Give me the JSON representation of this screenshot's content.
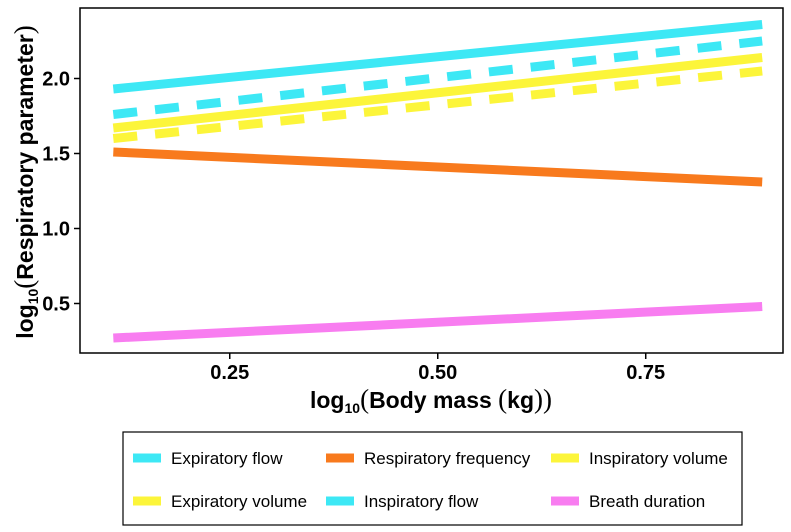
{
  "chart_data": {
    "type": "line",
    "xlabel": {
      "prefix": "log",
      "sub": "10",
      "open": "(",
      "text": "Body mass ",
      "unit_open": "(",
      "unit": "kg",
      "unit_close": ")",
      "close": ")"
    },
    "ylabel": {
      "prefix": "log",
      "sub": "10",
      "open": "(",
      "text": "Respiratory parameter",
      "close": ")"
    },
    "xlim": [
      0.07,
      0.915
    ],
    "ylim": [
      0.17,
      2.47
    ],
    "xticks": [
      0.25,
      0.5,
      0.75
    ],
    "xtick_labels": [
      "0.25",
      "0.50",
      "0.75"
    ],
    "yticks": [
      0.5,
      1.0,
      1.5,
      2.0
    ],
    "ytick_labels": [
      "0.5",
      "1.0",
      "1.5",
      "2.0"
    ],
    "grid": false,
    "legend_position": "bottom",
    "series": [
      {
        "name": "Expiratory flow",
        "color": "#3de8f5",
        "dash": "solid",
        "x": [
          0.11,
          0.89
        ],
        "y": [
          1.93,
          2.36
        ]
      },
      {
        "name": "Inspiratory flow",
        "color": "#3de8f5",
        "dash": "dashed",
        "x": [
          0.11,
          0.89
        ],
        "y": [
          1.76,
          2.25
        ]
      },
      {
        "name": "Inspiratory volume",
        "color": "#fcf53a",
        "dash": "solid",
        "x": [
          0.11,
          0.89
        ],
        "y": [
          1.67,
          2.14
        ]
      },
      {
        "name": "Expiratory volume",
        "color": "#fcf53a",
        "dash": "dashed",
        "x": [
          0.11,
          0.89
        ],
        "y": [
          1.6,
          2.05
        ]
      },
      {
        "name": "Respiratory frequency",
        "color": "#f87a1d",
        "dash": "solid",
        "x": [
          0.11,
          0.89
        ],
        "y": [
          1.51,
          1.31
        ]
      },
      {
        "name": "Breath duration",
        "color": "#f87df0",
        "dash": "solid",
        "x": [
          0.11,
          0.89
        ],
        "y": [
          0.27,
          0.48
        ]
      }
    ],
    "legend_order": [
      "Expiratory flow",
      "Respiratory frequency",
      "Inspiratory volume",
      "Expiratory volume",
      "Inspiratory flow",
      "Breath duration"
    ]
  }
}
